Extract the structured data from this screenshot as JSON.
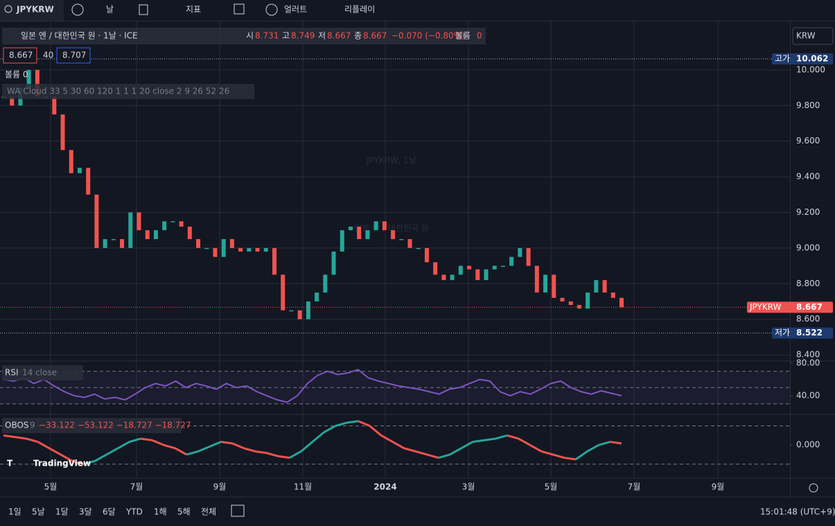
{
  "toolbar": {
    "symbol": "JPYKRW",
    "interval": "날",
    "indicators": "지표",
    "alerts": "얼러트",
    "replay": "리플레이"
  },
  "legend": {
    "title": "일본 엔 / 대한민국 원 · 1날 · ICE",
    "o_label": "시",
    "o": "8.731",
    "h_label": "고",
    "h": "8.749",
    "l_label": "저",
    "l": "8.667",
    "c_label": "종",
    "c": "8.667",
    "change": "−0.070 (−0.80%)",
    "vol_label": "볼륨",
    "vol": "0",
    "bid": "8.667",
    "spread": "40",
    "ask": "8.707",
    "volume_row": "볼륨 0",
    "cloud": "WA Cloud 33 5 30 60 120 1 1 1 20 close 2 9 26 52 26"
  },
  "watermark": {
    "symbol": "JPYKRW, 1날",
    "name": "일본 엔 / 대한민국 원"
  },
  "currency": "KRW",
  "time_labels": [
    "5월",
    "7월",
    "9월",
    "11월",
    "2024",
    "3월",
    "5월",
    "7월",
    "9월"
  ],
  "chart_data": [
    {
      "type": "candlestick",
      "up_color": "#26a69a",
      "down_color": "#ef5350",
      "values": [
        9.85,
        9.8,
        9.9,
        10.0,
        9.85,
        9.85,
        9.75,
        9.55,
        9.42,
        9.45,
        9.3,
        9.0,
        9.05,
        9.05,
        9.0,
        9.2,
        9.1,
        9.05,
        9.1,
        9.15,
        9.15,
        9.12,
        9.05,
        9.0,
        9.0,
        8.95,
        9.05,
        9.0,
        8.98,
        9.0,
        8.98,
        9.0,
        8.85,
        8.65,
        8.65,
        8.6,
        8.7,
        8.75,
        8.85,
        8.98,
        9.1,
        9.12,
        9.05,
        9.1,
        9.15,
        9.1,
        9.05,
        9.05,
        9.0,
        9.0,
        8.92,
        8.85,
        8.82,
        8.85,
        8.9,
        8.88,
        8.82,
        8.88,
        8.9,
        8.9,
        8.95,
        9.0,
        8.9,
        8.75,
        8.85,
        8.72,
        8.7,
        8.68,
        8.66,
        8.75,
        8.82,
        8.75,
        8.72,
        8.667
      ],
      "ylim": [
        8.369,
        10.276
      ],
      "yticks": [
        {
          "value": 8.4,
          "label": "8.400"
        },
        {
          "value": 8.6,
          "label": "8.600"
        },
        {
          "value": 8.8,
          "label": "8.800"
        },
        {
          "value": 9.0,
          "label": "9.000"
        },
        {
          "value": 9.2,
          "label": "9.200"
        },
        {
          "value": 9.4,
          "label": "9.400"
        },
        {
          "value": 9.6,
          "label": "9.600"
        },
        {
          "value": 9.8,
          "label": "9.800"
        },
        {
          "value": 10.0,
          "label": "10.000"
        }
      ],
      "price_lines": [
        {
          "name": "고가",
          "value": 10.062,
          "color": "#1e3a6e"
        },
        {
          "name": "JPYKRW",
          "value": 8.667,
          "color": "#ef5350"
        },
        {
          "name": "저가",
          "value": 8.522,
          "color": "#1e3a6e"
        }
      ]
    },
    {
      "type": "line",
      "name": "RSI",
      "params": "14 close",
      "color": "#7e57c2",
      "values": [
        60,
        58,
        62,
        55,
        60,
        52,
        45,
        40,
        38,
        42,
        36,
        38,
        35,
        42,
        50,
        55,
        52,
        58,
        50,
        55,
        52,
        48,
        55,
        50,
        52,
        45,
        40,
        35,
        32,
        40,
        55,
        65,
        70,
        66,
        68,
        72,
        62,
        58,
        55,
        52,
        50,
        48,
        45,
        42,
        48,
        50,
        55,
        60,
        58,
        45,
        40,
        45,
        42,
        48,
        55,
        58,
        50,
        45,
        42,
        46,
        43,
        40
      ],
      "ylim": [
        17.9,
        81.7
      ],
      "yticks": [
        {
          "value": 40,
          "label": "40.00"
        },
        {
          "value": 80,
          "label": "80.00"
        }
      ],
      "bands": [
        30,
        50,
        70
      ]
    },
    {
      "type": "segments",
      "name": "OBOS",
      "params": "9",
      "legend_values": "−33.122 −53.122 −18.727 −18.727",
      "up_color": "#26a69a",
      "down_color": "#ef5350",
      "values": [
        30,
        25,
        20,
        10,
        -10,
        -30,
        -50,
        -60,
        -50,
        -30,
        -10,
        10,
        20,
        15,
        0,
        -10,
        -30,
        -20,
        -5,
        10,
        5,
        -10,
        -20,
        -25,
        -35,
        -40,
        -20,
        10,
        40,
        60,
        70,
        75,
        60,
        30,
        10,
        -10,
        -20,
        -30,
        -40,
        -30,
        -10,
        10,
        15,
        20,
        30,
        20,
        0,
        -20,
        -30,
        -40,
        -45,
        -20,
        0,
        10,
        5
      ],
      "ylim": [
        -104,
        96
      ],
      "yticks": [
        {
          "value": 0,
          "label": "0.000"
        }
      ],
      "bands": [
        -60,
        60
      ]
    }
  ],
  "ranges": [
    "1일",
    "5날",
    "1달",
    "3달",
    "6달",
    "YTD",
    "1해",
    "5해",
    "전체"
  ],
  "clock": "15:01:48 (UTC+9)",
  "brand": "TradingView"
}
